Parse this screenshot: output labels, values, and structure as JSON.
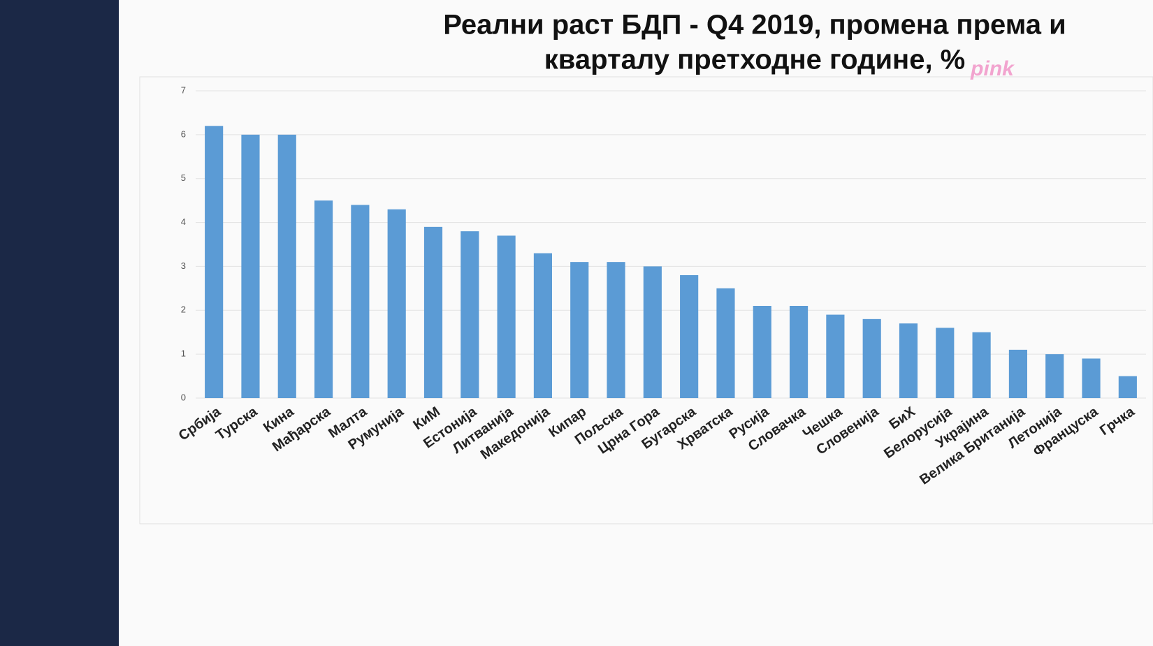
{
  "chart_data": {
    "type": "bar",
    "title_lines": [
      "Реални раст БДП - Q4 2019, промена према и",
      "кварталу претходне године, %"
    ],
    "watermark": "pink",
    "categories": [
      "Србија",
      "Турска",
      "Кина",
      "Мађарска",
      "Малта",
      "Румунија",
      "КиМ",
      "Естонија",
      "Литванија",
      "Македонија",
      "Кипар",
      "Пољска",
      "Црна Гора",
      "Бугарска",
      "Хрватска",
      "Русија",
      "Словачка",
      "Чешка",
      "Словенија",
      "БиХ",
      "Белорусија",
      "Украјина",
      "Велика Британија",
      "Летонија",
      "Француска",
      "Грчка"
    ],
    "values": [
      6.2,
      6.0,
      6.0,
      4.5,
      4.4,
      4.3,
      3.9,
      3.8,
      3.7,
      3.3,
      3.1,
      3.1,
      3.0,
      2.8,
      2.5,
      2.1,
      2.1,
      1.9,
      1.8,
      1.7,
      1.6,
      1.5,
      1.1,
      1.0,
      0.9,
      0.5
    ],
    "color": "#5b9bd5",
    "ylim": [
      0,
      7
    ],
    "yticks": [
      0,
      1,
      2,
      3,
      4,
      5,
      6,
      7
    ],
    "grid": true
  }
}
